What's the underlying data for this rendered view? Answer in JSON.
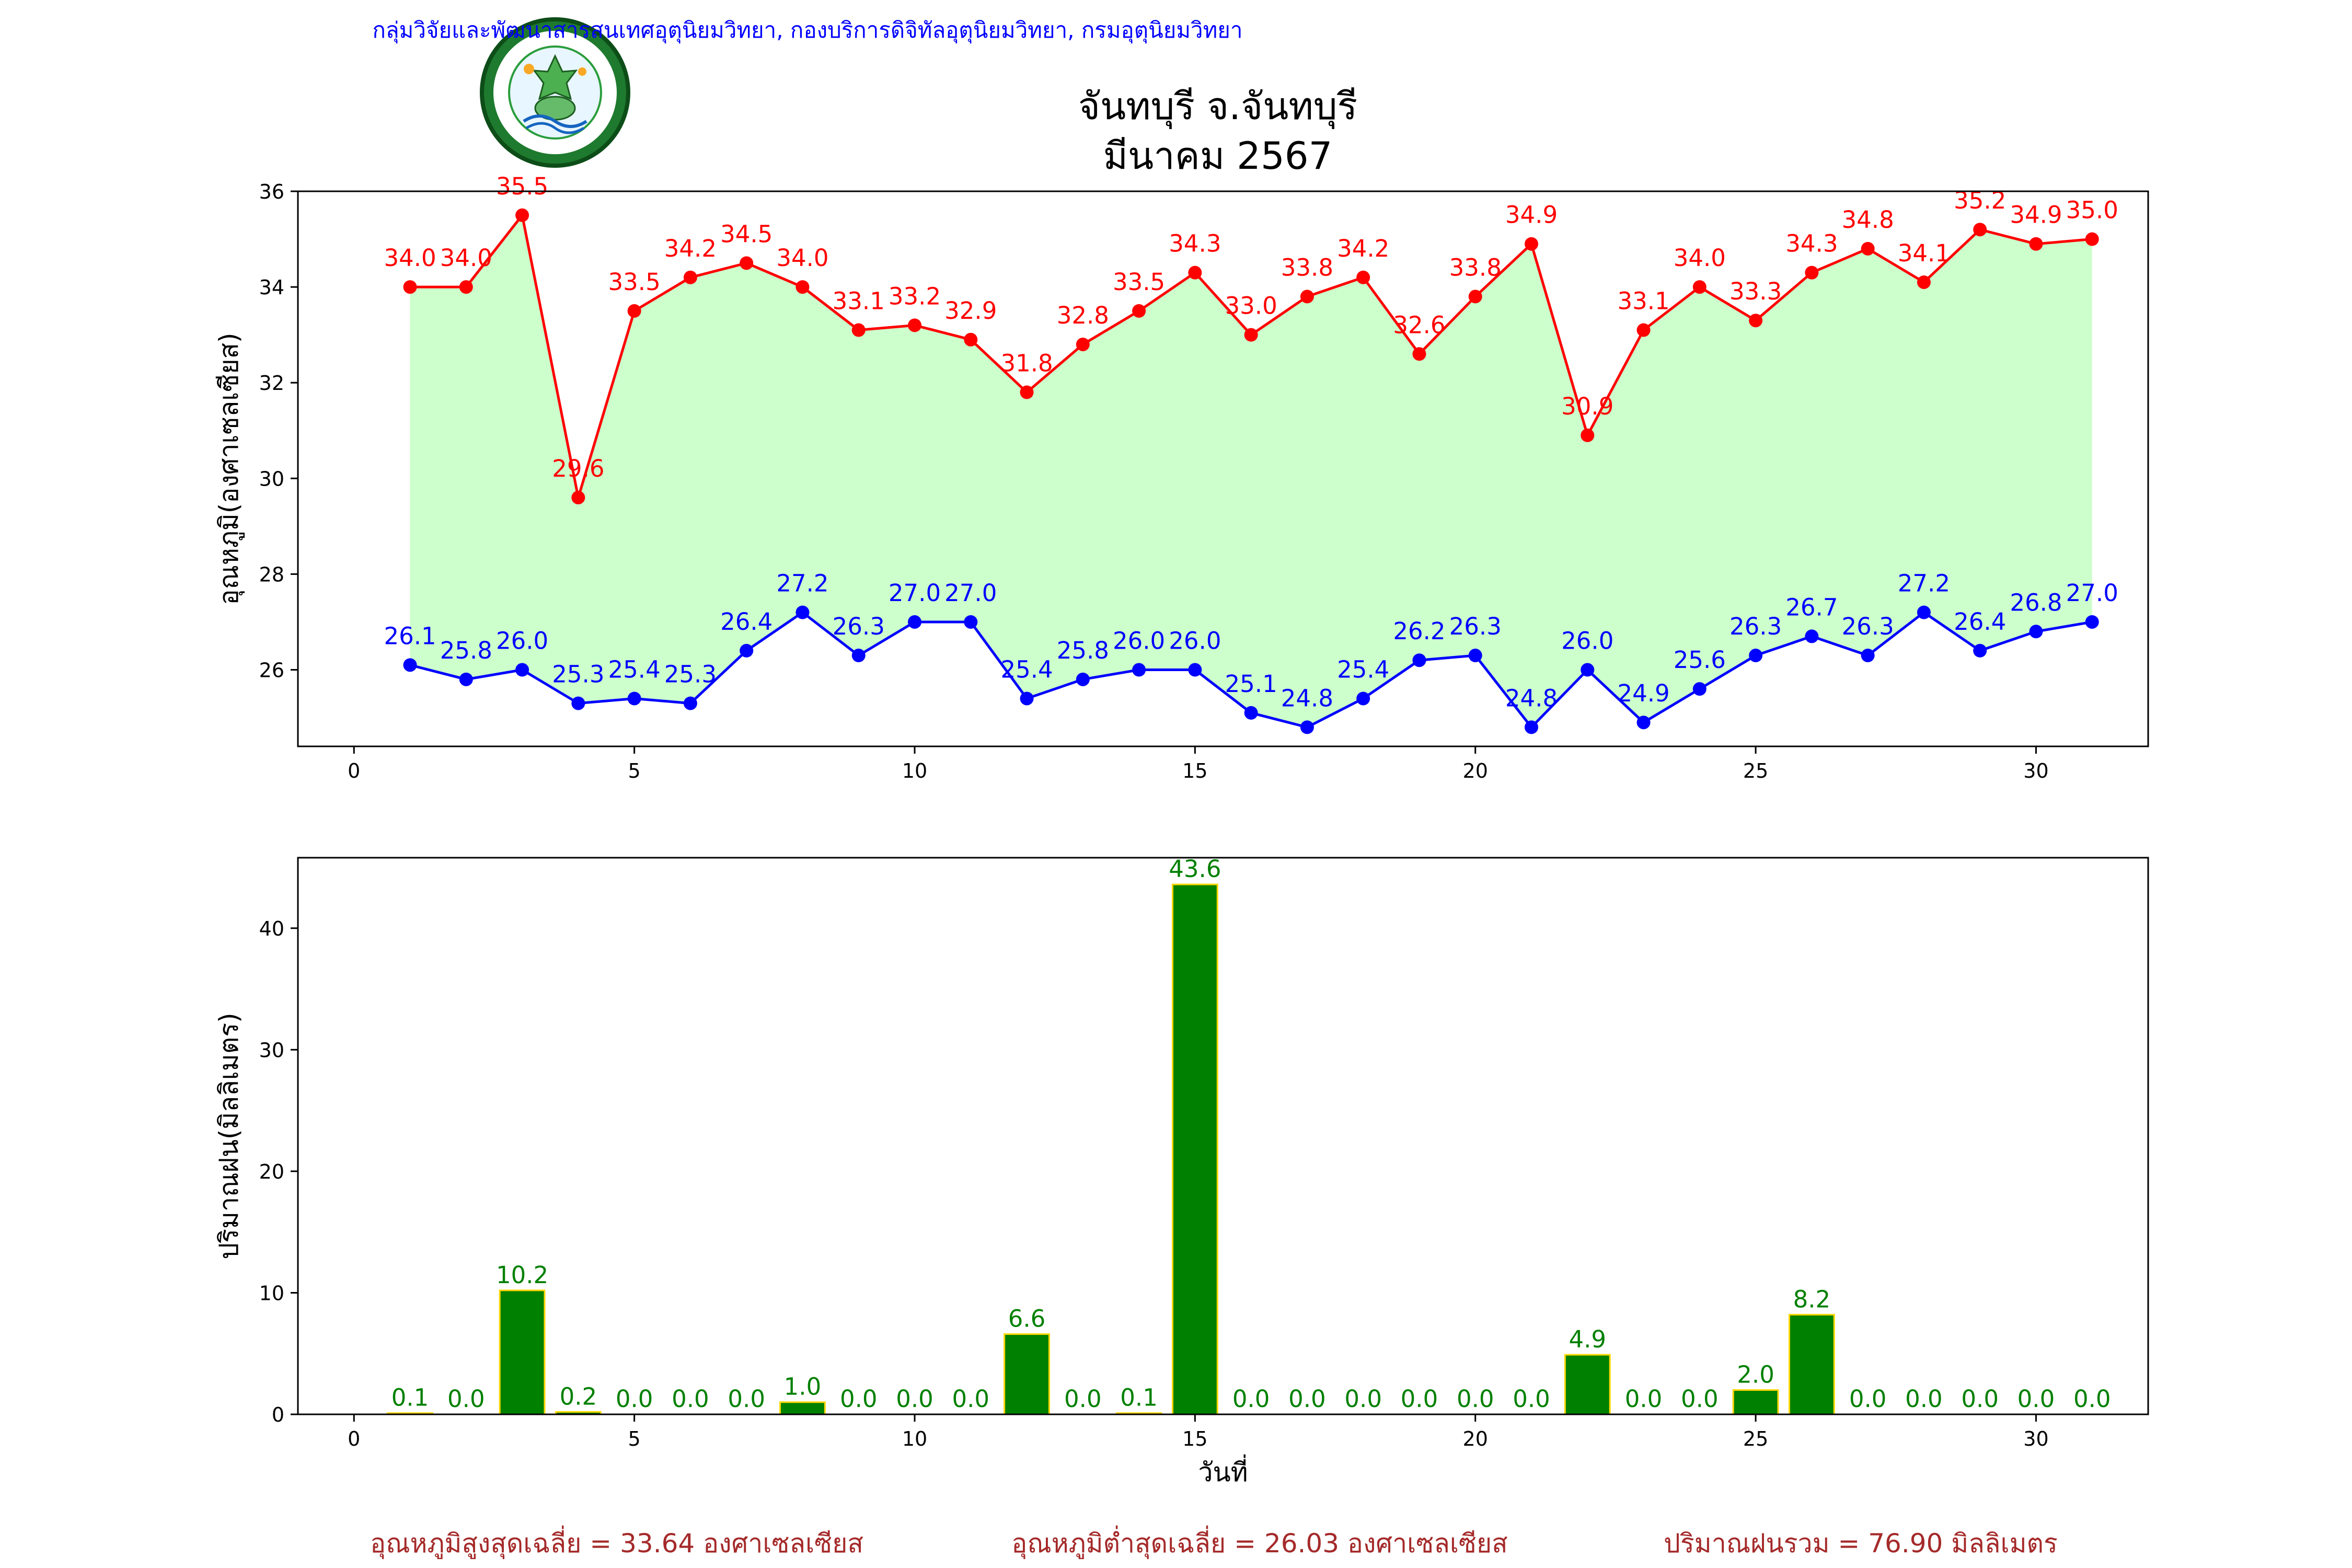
{
  "header": {
    "agency": "กลุ่มวิจัยและพัฒนาสารสนเทศอุตุนิยมวิทยา, กองบริการดิจิทัลอุตุนิยมวิทยา, กรมอุตุนิยมวิทยา",
    "logo_text_top": "กรมอุตุนิยมวิทยา",
    "logo_text_bottom": "METEOROLOGICAL DEPARTMENT",
    "title_line1": "จันทบุรี จ.จันทบุรี",
    "title_line2": "มีนาคม 2567"
  },
  "colors": {
    "agency": "#0000ff",
    "tmax": "#ff0000",
    "tmin": "#0000ff",
    "fill": "#ccffcc",
    "bar": "#008000",
    "bar_edge": "#ffd700",
    "footer": "#a52a2a"
  },
  "chart_data": [
    {
      "type": "line",
      "ylabel": "อุณหภูมิ(องศาเซลเซียส)",
      "xlabel": "",
      "xlim": [
        -1,
        32
      ],
      "ylim": [
        24.4,
        36.0
      ],
      "xticks": [
        0,
        5,
        10,
        15,
        20,
        25,
        30
      ],
      "yticks": [
        26,
        28,
        30,
        32,
        34,
        36
      ],
      "fill_between": true,
      "x": [
        1,
        2,
        3,
        4,
        5,
        6,
        7,
        8,
        9,
        10,
        11,
        12,
        13,
        14,
        15,
        16,
        17,
        18,
        19,
        20,
        21,
        22,
        23,
        24,
        25,
        26,
        27,
        28,
        29,
        30,
        31
      ],
      "series": [
        {
          "key": "tmax",
          "values": [
            34.0,
            34.0,
            35.5,
            29.6,
            33.5,
            34.2,
            34.5,
            34.0,
            33.1,
            33.2,
            32.9,
            31.8,
            32.8,
            33.5,
            34.3,
            33.0,
            33.8,
            34.2,
            32.6,
            33.8,
            34.9,
            30.9,
            33.1,
            34.0,
            33.3,
            34.3,
            34.8,
            34.1,
            35.2,
            34.9,
            35.0
          ]
        },
        {
          "key": "tmin",
          "values": [
            26.1,
            25.8,
            26.0,
            25.3,
            25.4,
            25.3,
            26.4,
            27.2,
            26.3,
            27.0,
            27.0,
            25.4,
            25.8,
            26.0,
            26.0,
            25.1,
            24.8,
            25.4,
            26.2,
            26.3,
            24.8,
            26.0,
            24.9,
            25.6,
            26.3,
            26.7,
            26.3,
            27.2,
            26.4,
            26.8,
            27.0
          ]
        }
      ]
    },
    {
      "type": "bar",
      "ylabel": "ปริมาณฝน(มิลลิเมตร)",
      "xlabel": "วันที่",
      "xlim": [
        -1,
        32
      ],
      "ylim": [
        0,
        45.8
      ],
      "xticks": [
        0,
        5,
        10,
        15,
        20,
        25,
        30
      ],
      "yticks": [
        0,
        10,
        20,
        30,
        40
      ],
      "x": [
        1,
        2,
        3,
        4,
        5,
        6,
        7,
        8,
        9,
        10,
        11,
        12,
        13,
        14,
        15,
        16,
        17,
        18,
        19,
        20,
        21,
        22,
        23,
        24,
        25,
        26,
        27,
        28,
        29,
        30,
        31
      ],
      "values": [
        0.1,
        0.0,
        10.2,
        0.2,
        0.0,
        0.0,
        0.0,
        1.0,
        0.0,
        0.0,
        0.0,
        6.6,
        0.0,
        0.1,
        43.6,
        0.0,
        0.0,
        0.0,
        0.0,
        0.0,
        0.0,
        4.9,
        0.0,
        0.0,
        2.0,
        8.2,
        0.0,
        0.0,
        0.0,
        0.0,
        0.0
      ]
    }
  ],
  "footer": {
    "avg_max": "อุณหภูมิสูงสุดเฉลี่ย = 33.64 องศาเซลเซียส",
    "avg_min": "อุณหภูมิต่ำสุดเฉลี่ย = 26.03 องศาเซลเซียส",
    "rain_total": "ปริมาณฝนรวม = 76.90 มิลลิเมตร"
  }
}
